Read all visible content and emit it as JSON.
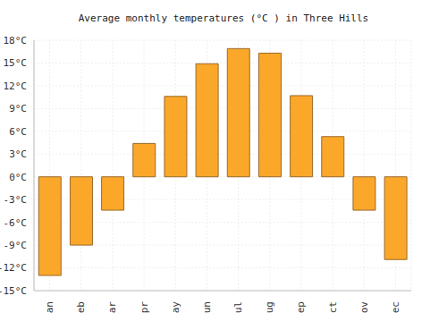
{
  "chart_data": {
    "type": "bar",
    "title": "Average monthly temperatures (°C ) in Three Hills",
    "categories": [
      "Jan",
      "Feb",
      "Mar",
      "Apr",
      "May",
      "Jun",
      "Jul",
      "Aug",
      "Sep",
      "Oct",
      "Nov",
      "Dec"
    ],
    "values": [
      -13,
      -9,
      -4.4,
      4.4,
      10.6,
      14.9,
      16.9,
      16.3,
      10.7,
      5.3,
      -4.4,
      -10.9
    ],
    "color": "#fba72a",
    "ylim": [
      -15,
      18
    ],
    "yticks": [
      {
        "value": -15,
        "label": "-15°C"
      },
      {
        "value": -12,
        "label": "-12°C"
      },
      {
        "value": -9,
        "label": "-9°C"
      },
      {
        "value": -6,
        "label": "-6°C"
      },
      {
        "value": -3,
        "label": "-3°C"
      },
      {
        "value": 0,
        "label": "0°C"
      },
      {
        "value": 3,
        "label": "3°C"
      },
      {
        "value": 6,
        "label": "6°C"
      },
      {
        "value": 9,
        "label": "9°C"
      },
      {
        "value": 12,
        "label": "12°C"
      },
      {
        "value": 15,
        "label": "15°C"
      },
      {
        "value": 18,
        "label": "18°C"
      }
    ],
    "grid": true
  }
}
